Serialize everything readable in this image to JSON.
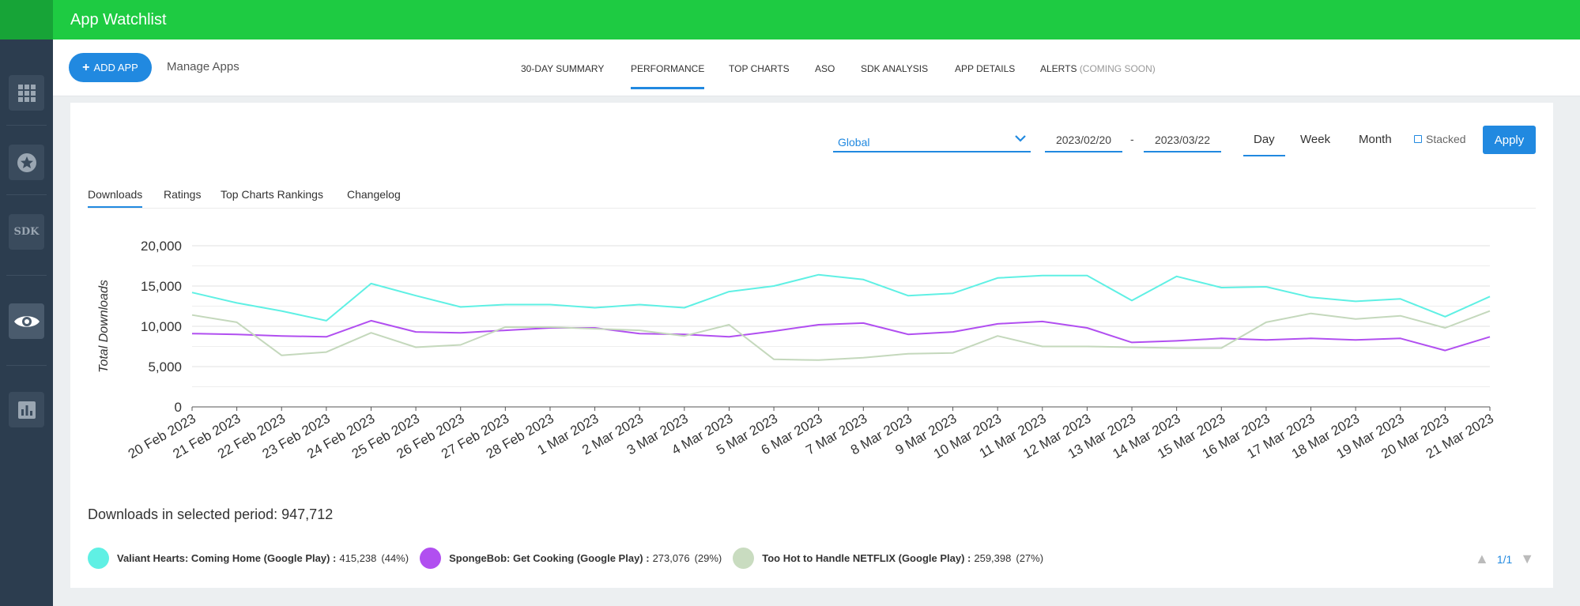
{
  "app": {
    "title": "App Watchlist"
  },
  "subnav": {
    "add_app_label": "ADD APP",
    "manage_apps_label": "Manage Apps",
    "tabs": [
      {
        "label": "30-DAY SUMMARY"
      },
      {
        "label": "PERFORMANCE"
      },
      {
        "label": "TOP CHARTS"
      },
      {
        "label": "ASO"
      },
      {
        "label": "SDK ANALYSIS"
      },
      {
        "label": "APP DETAILS"
      },
      {
        "label": "ALERTS",
        "suffix": "(COMING SOON)"
      }
    ],
    "active_tab": "PERFORMANCE"
  },
  "sidebar": {
    "sdk_label": "SDK"
  },
  "filters": {
    "region": "Global",
    "date_from": "2023/02/20",
    "date_sep": "-",
    "date_to": "2023/03/22",
    "periods": [
      "Day",
      "Week",
      "Month"
    ],
    "active_period": "Day",
    "stacked_label": "Stacked",
    "apply_label": "Apply"
  },
  "chart_tabs": [
    "Downloads",
    "Ratings",
    "Top Charts Rankings",
    "Changelog"
  ],
  "summary": {
    "total_text": "Downloads in selected period: 947,712"
  },
  "legend": [
    {
      "name": "Valiant Hearts: Coming Home (Google Play) :",
      "value": "415,238",
      "pct": "(44%)",
      "color": "#5ff0e4"
    },
    {
      "name": "SpongeBob: Get Cooking (Google Play) :",
      "value": "273,076",
      "pct": "(29%)",
      "color": "#b14ff0"
    },
    {
      "name": "Too Hot to Handle NETFLIX (Google Play) :",
      "value": "259,398",
      "pct": "(27%)",
      "color": "#c9dcc0"
    }
  ],
  "pager": {
    "label": "1/1"
  },
  "chart_data": {
    "type": "line",
    "ylabel": "Total Downloads",
    "ylim": [
      0,
      20000
    ],
    "yticks": [
      0,
      5000,
      10000,
      15000,
      20000
    ],
    "ytick_labels": [
      "0",
      "5,000",
      "10,000",
      "15,000",
      "20,000"
    ],
    "grid": true,
    "categories": [
      "20 Feb 2023",
      "21 Feb 2023",
      "22 Feb 2023",
      "23 Feb 2023",
      "24 Feb 2023",
      "25 Feb 2023",
      "26 Feb 2023",
      "27 Feb 2023",
      "28 Feb 2023",
      "1 Mar 2023",
      "2 Mar 2023",
      "3 Mar 2023",
      "4 Mar 2023",
      "5 Mar 2023",
      "6 Mar 2023",
      "7 Mar 2023",
      "8 Mar 2023",
      "9 Mar 2023",
      "10 Mar 2023",
      "11 Mar 2023",
      "12 Mar 2023",
      "13 Mar 2023",
      "14 Mar 2023",
      "15 Mar 2023",
      "16 Mar 2023",
      "17 Mar 2023",
      "18 Mar 2023",
      "19 Mar 2023",
      "20 Mar 2023",
      "21 Mar 2023"
    ],
    "series": [
      {
        "name": "Valiant Hearts: Coming Home (Google Play)",
        "color": "#5ff0e4",
        "values": [
          14200,
          12900,
          11900,
          10700,
          15300,
          13800,
          12400,
          12700,
          12700,
          12300,
          12700,
          12300,
          14300,
          15000,
          16400,
          15800,
          13800,
          14100,
          16000,
          16300,
          16300,
          13200,
          16200,
          14800,
          14900,
          13600,
          13100,
          13400,
          11200,
          13700
        ]
      },
      {
        "name": "SpongeBob: Get Cooking (Google Play)",
        "color": "#b14ff0",
        "values": [
          9100,
          9000,
          8800,
          8700,
          10700,
          9300,
          9200,
          9500,
          9800,
          9800,
          9100,
          9000,
          8700,
          9400,
          10200,
          10400,
          9000,
          9300,
          10300,
          10600,
          9800,
          8000,
          8200,
          8500,
          8300,
          8500,
          8300,
          8500,
          7000,
          8700
        ]
      },
      {
        "name": "Too Hot to Handle NETFLIX (Google Play)",
        "color": "#c4d8bc",
        "values": [
          11400,
          10500,
          6400,
          6800,
          9200,
          7400,
          7700,
          9900,
          9900,
          9700,
          9500,
          8800,
          10200,
          5900,
          5800,
          6100,
          6600,
          6700,
          8800,
          7500,
          7500,
          7400,
          7300,
          7300,
          10500,
          11600,
          10900,
          11300,
          9800,
          11900
        ]
      }
    ]
  }
}
